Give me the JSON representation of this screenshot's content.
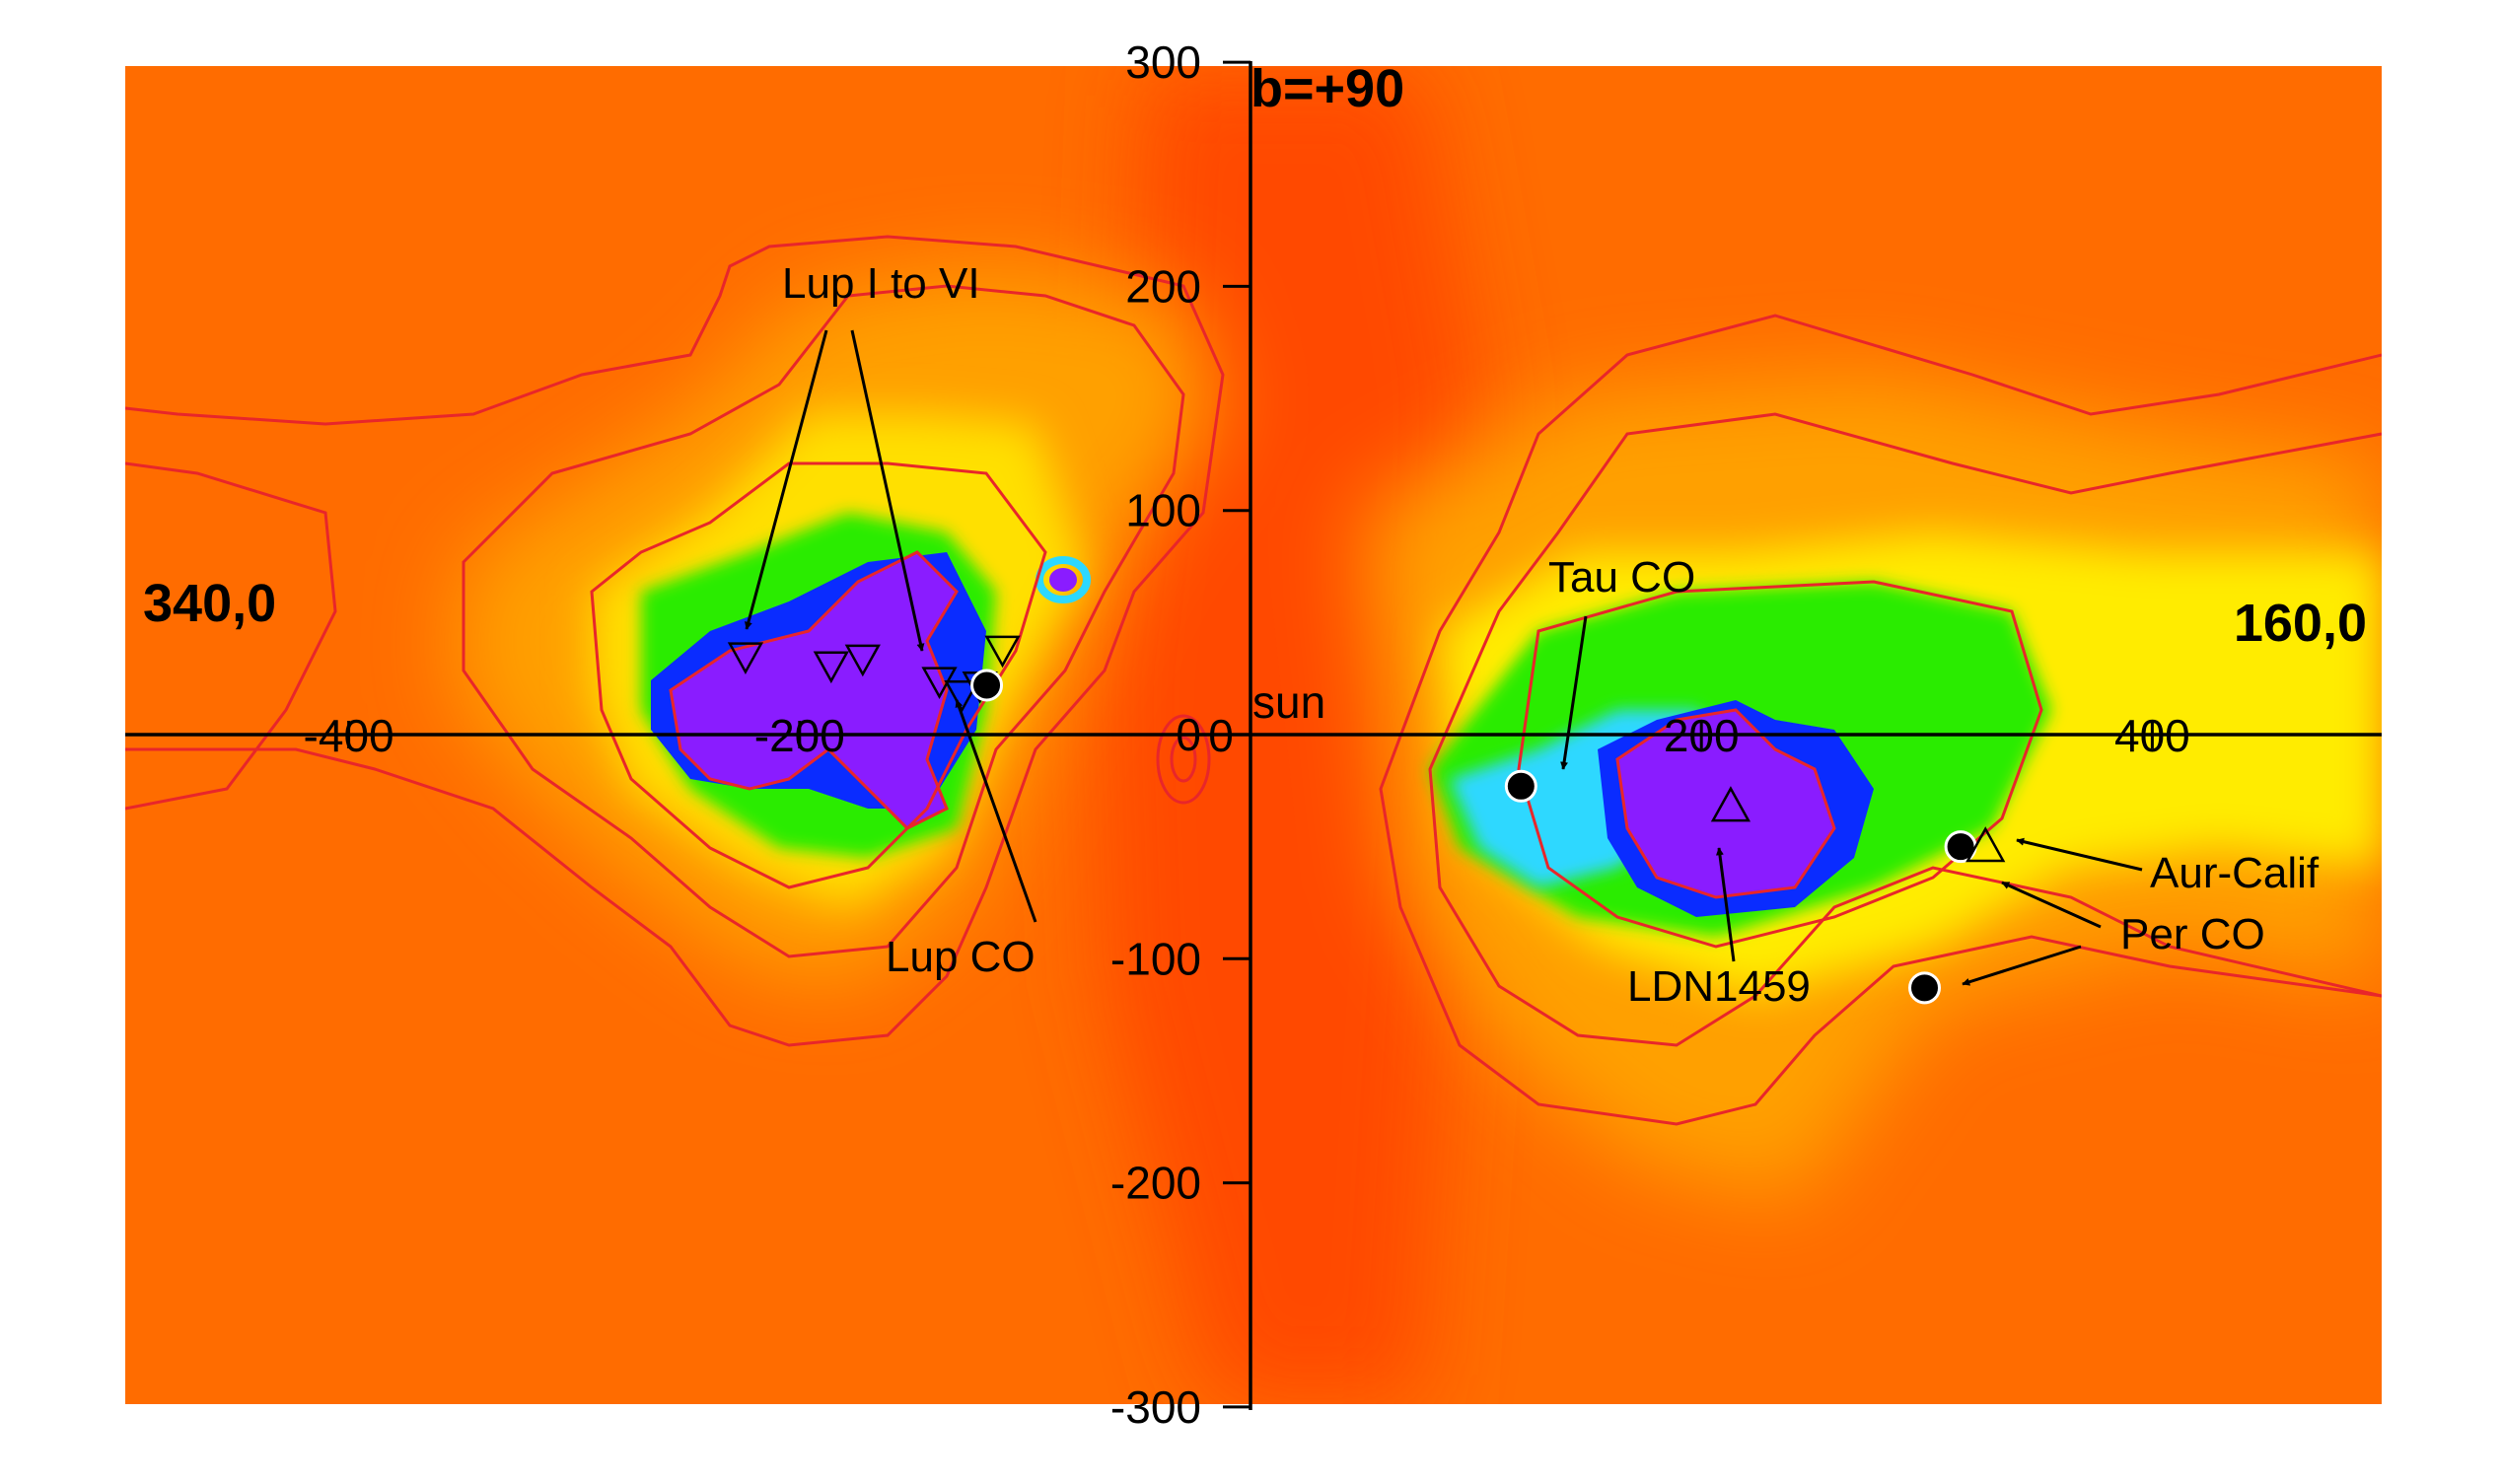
{
  "chart_data": {
    "type": "heatmap",
    "title": "",
    "xlabel": "",
    "ylabel": "",
    "xlim": [
      -500,
      500
    ],
    "ylim": [
      -300,
      300
    ],
    "x_ticks": [
      {
        "value": -400,
        "label": "-400"
      },
      {
        "value": -200,
        "label": "-200"
      },
      {
        "value": 0,
        "label": "0"
      },
      {
        "value": 200,
        "label": "200"
      },
      {
        "value": 400,
        "label": "400"
      }
    ],
    "y_ticks": [
      {
        "value": 300,
        "label": "300"
      },
      {
        "value": 200,
        "label": "200"
      },
      {
        "value": 100,
        "label": "100"
      },
      {
        "value": 0,
        "label": "0"
      },
      {
        "value": -100,
        "label": "-100"
      },
      {
        "value": -200,
        "label": "-200"
      },
      {
        "value": -300,
        "label": "-300"
      }
    ],
    "direction_labels": {
      "top": "b=+90",
      "left": "340,0",
      "right": "160,0",
      "origin": "sun"
    },
    "colormap": [
      "#ff4a00",
      "#ff6a00",
      "#ff9a00",
      "#ffd200",
      "#f6ff00",
      "#b6ff00",
      "#2cf000",
      "#2dd8ff",
      "#0a2cff",
      "#8a1cff"
    ],
    "contour_color": "#e8262a",
    "markers": [
      {
        "type": "triangle-down",
        "x": -224,
        "y": 35
      },
      {
        "type": "triangle-down",
        "x": -186,
        "y": 31
      },
      {
        "type": "triangle-down",
        "x": -172,
        "y": 34
      },
      {
        "type": "triangle-down",
        "x": -138,
        "y": 24
      },
      {
        "type": "triangle-down",
        "x": -128,
        "y": 18
      },
      {
        "type": "triangle-down",
        "x": -120,
        "y": 22
      },
      {
        "type": "triangle-down",
        "x": -110,
        "y": 38
      },
      {
        "type": "filled-circle",
        "x": -117,
        "y": 22
      },
      {
        "type": "filled-circle",
        "x": 120,
        "y": -23
      },
      {
        "type": "triangle-up",
        "x": 213,
        "y": -32
      },
      {
        "type": "filled-circle",
        "x": 315,
        "y": -50
      },
      {
        "type": "triangle-up",
        "x": 326,
        "y": -50
      },
      {
        "type": "filled-circle",
        "x": 299,
        "y": -113
      }
    ],
    "annotations": [
      {
        "text": "Lup I to VI"
      },
      {
        "text": "Lup CO"
      },
      {
        "text": "Tau CO"
      },
      {
        "text": "LDN1459"
      },
      {
        "text": "Aur-Calif"
      },
      {
        "text": "Per CO"
      }
    ]
  }
}
